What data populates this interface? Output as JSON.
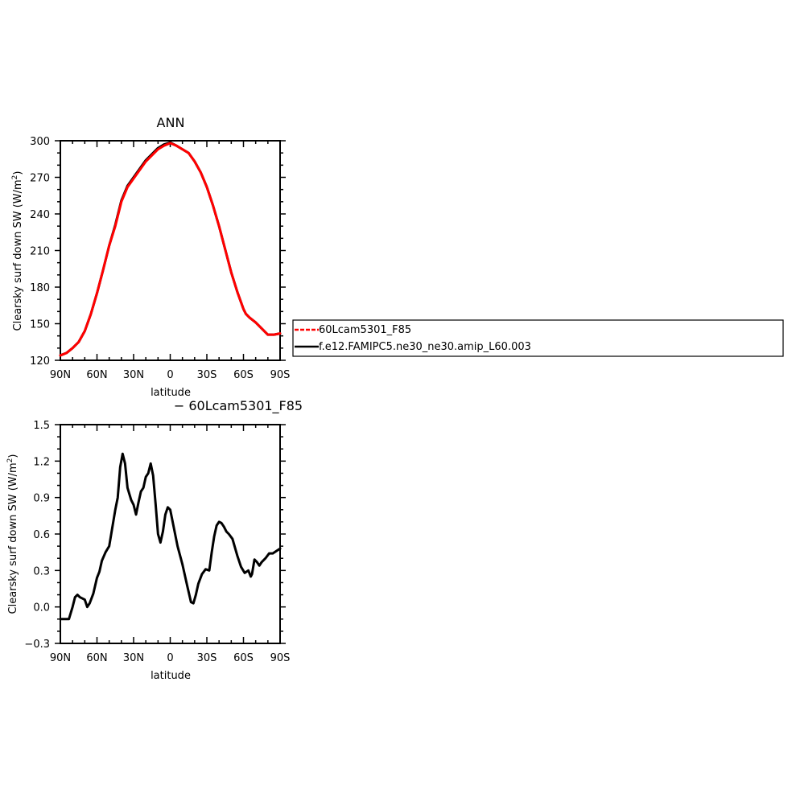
{
  "chart_data": [
    {
      "type": "line",
      "title": "ANN",
      "xlabel": "latitude",
      "ylabel": "Clearsky surf down SW (W/m²)",
      "ylabel_main": "Clearsky surf down SW (W/m",
      "ylabel_sup": "2",
      "ylabel_tail": ")",
      "xlim": [
        -90,
        90
      ],
      "ylim": [
        120,
        300
      ],
      "xticks": [
        -90,
        -60,
        -30,
        0,
        30,
        60,
        90
      ],
      "xtick_labels": [
        "90N",
        "60N",
        "30N",
        "0",
        "30S",
        "60S",
        "90S"
      ],
      "yticks": [
        120,
        150,
        180,
        210,
        240,
        270,
        300
      ],
      "ytick_labels": [
        "120",
        "150",
        "180",
        "210",
        "240",
        "270",
        "300"
      ],
      "series": [
        {
          "name": "60Lcam5301_F85",
          "color": "#ff0000",
          "dash": "dashed",
          "x": [
            -90,
            -85,
            -80,
            -75,
            -70,
            -65,
            -60,
            -55,
            -50,
            -45,
            -40,
            -35,
            -30,
            -25,
            -20,
            -15,
            -10,
            -5,
            0,
            5,
            10,
            15,
            20,
            25,
            30,
            35,
            40,
            45,
            50,
            55,
            60,
            62,
            65,
            70,
            75,
            80,
            85,
            90
          ],
          "y": [
            124,
            126,
            130,
            135,
            144,
            158,
            175,
            194,
            214,
            230,
            250,
            262,
            269,
            276,
            283,
            288,
            293,
            296,
            298,
            296,
            293,
            290,
            283,
            274,
            262,
            247,
            230,
            211,
            192,
            176,
            162,
            158,
            155,
            151,
            146,
            141,
            141,
            142
          ]
        },
        {
          "name": "f.e12.FAMIPC5.ne30_ne30.amip_L60.003",
          "color": "#000000",
          "dash": "solid",
          "x": [
            -90,
            -85,
            -80,
            -75,
            -70,
            -65,
            -60,
            -55,
            -50,
            -45,
            -40,
            -35,
            -30,
            -25,
            -20,
            -15,
            -10,
            -5,
            0,
            5,
            10,
            15,
            20,
            25,
            30,
            35,
            40,
            45,
            50,
            55,
            60,
            62,
            65,
            70,
            75,
            80,
            85,
            90
          ],
          "y": [
            124,
            126,
            130,
            135,
            144,
            158,
            175,
            194,
            214,
            231,
            251,
            263,
            270,
            277,
            284,
            289,
            294,
            297,
            298.5,
            296,
            293,
            290,
            283,
            274,
            262,
            247,
            230,
            211,
            192,
            176,
            162,
            158,
            155,
            151,
            146,
            141,
            141,
            142
          ]
        }
      ],
      "legend": {
        "placement": "right",
        "entries": [
          "60Lcam5301_F85",
          "f.e12.FAMIPC5.ne30_ne30.amip_L60.003"
        ]
      }
    },
    {
      "type": "line",
      "title": "− 60Lcam5301_F85",
      "xlabel": "latitude",
      "ylabel": "Clearsky surf down SW (W/m²)",
      "ylabel_main": "Clearsky surf down SW (W/m",
      "ylabel_sup": "2",
      "ylabel_tail": ")",
      "xlim": [
        -90,
        90
      ],
      "ylim": [
        -0.3,
        1.5
      ],
      "xticks": [
        -90,
        -60,
        -30,
        0,
        30,
        60,
        90
      ],
      "xtick_labels": [
        "90N",
        "60N",
        "30N",
        "0",
        "30S",
        "60S",
        "90S"
      ],
      "yticks": [
        -0.3,
        0.0,
        0.3,
        0.6,
        0.9,
        1.2,
        1.5
      ],
      "ytick_labels": [
        "−0.3",
        "0.0",
        "0.3",
        "0.6",
        "0.9",
        "1.2",
        "1.5"
      ],
      "series": [
        {
          "color": "#000000",
          "dash": "solid",
          "x": [
            -90,
            -86,
            -83,
            -80,
            -78,
            -76,
            -74,
            -72,
            -70,
            -68,
            -66,
            -63,
            -60,
            -58,
            -56,
            -53,
            -50,
            -48,
            -45,
            -43,
            -41,
            -39,
            -37,
            -35,
            -32,
            -30,
            -28,
            -26,
            -24,
            -22,
            -20,
            -18,
            -16,
            -14,
            -12,
            -10,
            -8,
            -6,
            -4,
            -2,
            0,
            3,
            6,
            10,
            14,
            17,
            19,
            21,
            23,
            26,
            29,
            32,
            34,
            36,
            38,
            40,
            42,
            44,
            46,
            48,
            51,
            55,
            58,
            61,
            64,
            66,
            67,
            69,
            71,
            73,
            75,
            78,
            81,
            84,
            87,
            90
          ],
          "y": [
            -0.1,
            -0.1,
            -0.1,
            0.0,
            0.08,
            0.1,
            0.08,
            0.07,
            0.06,
            0.0,
            0.03,
            0.11,
            0.24,
            0.29,
            0.38,
            0.45,
            0.5,
            0.62,
            0.8,
            0.9,
            1.15,
            1.26,
            1.18,
            0.98,
            0.88,
            0.84,
            0.76,
            0.86,
            0.95,
            0.98,
            1.07,
            1.1,
            1.18,
            1.08,
            0.85,
            0.6,
            0.53,
            0.62,
            0.76,
            0.82,
            0.8,
            0.65,
            0.5,
            0.35,
            0.17,
            0.04,
            0.03,
            0.1,
            0.19,
            0.27,
            0.31,
            0.3,
            0.45,
            0.58,
            0.67,
            0.7,
            0.69,
            0.66,
            0.62,
            0.6,
            0.56,
            0.42,
            0.33,
            0.28,
            0.3,
            0.25,
            0.27,
            0.39,
            0.37,
            0.34,
            0.37,
            0.4,
            0.44,
            0.44,
            0.46,
            0.48
          ]
        }
      ]
    }
  ]
}
